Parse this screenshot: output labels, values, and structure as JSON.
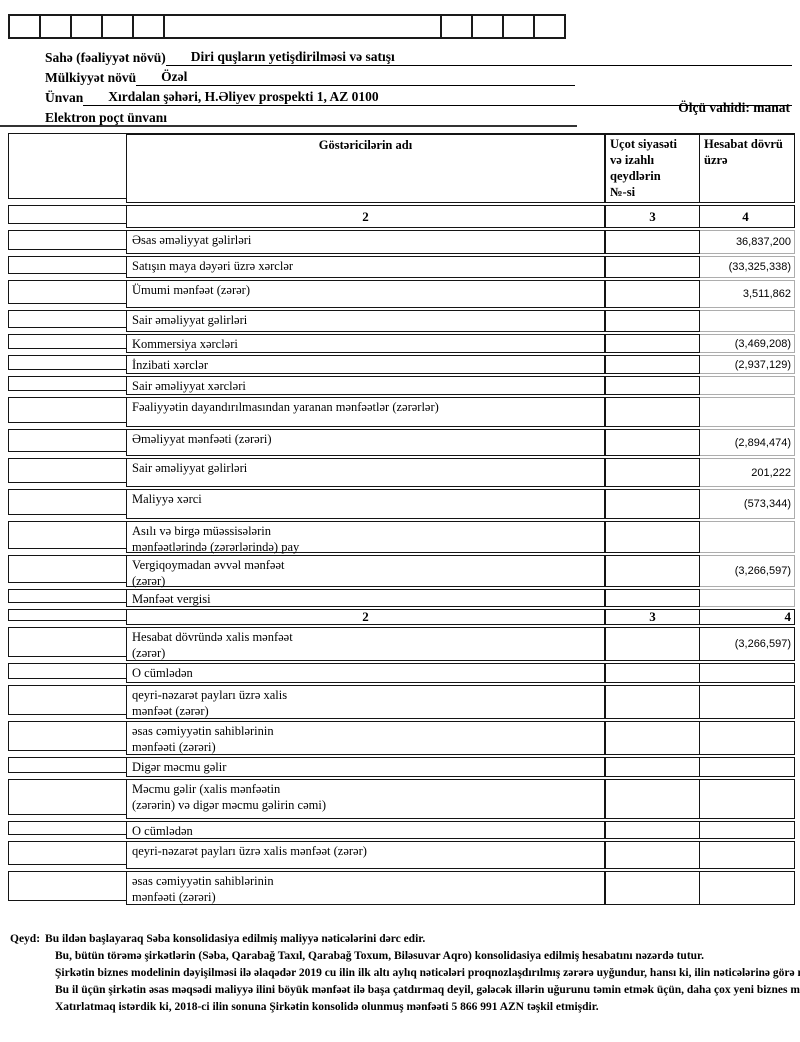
{
  "form": {
    "fields": [
      {
        "label": "Sahə (fəaliyyət növü)",
        "value": "Diri quşların yetişdirilməsi və satışı"
      },
      {
        "label": "Mülkiyyət növü",
        "value": "Özəl"
      },
      {
        "label": "Ünvan",
        "value": "Xırdalan şəhəri, H.Əliyev prospekti 1, AZ 0100"
      },
      {
        "label": "Elektron poçt ünvanı",
        "value": ""
      }
    ],
    "unit_label": "Ölçü vahidi: manat"
  },
  "table": {
    "header": {
      "name": "Göstəricilərin adı",
      "notes": "Uçot siyasəti\nvə izahlı\nqeydlərin\n№-si",
      "period": "Hesabat dövrü\nüzrə"
    },
    "column_numbers": [
      "2",
      "3",
      "4"
    ],
    "rows_a": [
      {
        "label": "Əsas əməliyyat gəlirləri",
        "value": "36,837,200"
      },
      {
        "label": "Satışın maya dəyəri üzrə xərclər",
        "value": "(33,325,338)"
      },
      {
        "label": "Ümumi mənfəət (zərər)",
        "value": "3,511,862"
      },
      {
        "label": "Sair əməliyyat gəlirləri",
        "value": ""
      },
      {
        "label": "Kommersiya xərcləri",
        "value": "(3,469,208)"
      },
      {
        "label": "İnzibati xərclər",
        "value": "(2,937,129)"
      },
      {
        "label": "Sair əməliyyat xərcləri",
        "value": ""
      },
      {
        "label": "Fəaliyyətin dayandırılmasından yaranan mənfəətlər (zərərlər)",
        "value": ""
      },
      {
        "label": "Əməliyyat mənfəəti (zərəri)",
        "value": "(2,894,474)"
      },
      {
        "label": "Sair əməliyyat gəlirləri",
        "value": "201,222"
      },
      {
        "label": "Maliyyə xərci",
        "value": "(573,344)"
      },
      {
        "label": "Asılı və birgə müəssisələrin\nmənfəətlərində (zərərlərində) pay",
        "value": ""
      },
      {
        "label": "Vergiqoymadan əvvəl mənfəət\n(zərər)",
        "value": "(3,266,597)"
      },
      {
        "label": "Mənfəət vergisi",
        "value": ""
      }
    ],
    "rows_b": [
      {
        "label": "Hesabat dövründə xalis mənfəət\n(zərər)",
        "value": "(3,266,597)"
      },
      {
        "label": "O cümlədən",
        "value": ""
      },
      {
        "label": "qeyri-nəzarət payları üzrə xalis\nmənfəət (zərər)",
        "value": ""
      },
      {
        "label": "əsas cəmiyyətin sahiblərinin\nmənfəəti (zərəri)",
        "value": ""
      },
      {
        "label": "Digər məcmu gəlir",
        "value": ""
      },
      {
        "label": "Məcmu gəlir (xalis mənfəətin\n(zərərin) və digər məcmu gəlirin cəmi)",
        "value": ""
      },
      {
        "label": "O cümlədən",
        "value": ""
      },
      {
        "label": "qeyri-nəzarət payları üzrə xalis mənfəət (zərər)",
        "value": ""
      },
      {
        "label": "əsas cəmiyyətin sahiblərinin\nmənfəəti (zərəri)",
        "value": ""
      }
    ]
  },
  "notes": {
    "prefix": "Qeyd:",
    "lines": [
      "Bu ildən başlayaraq Səba konsolidasiya edilmiş maliyyə nəticələrini dərc edir.",
      "Bu, bütün törəmə şirkətlərin (Səba, Qarabağ Taxıl, Qarabağ Toxum, Biləsuvar Aqro) konsolidasiya edilmiş hesabatını nəzərdə tutur.",
      "Şirkətin biznes modelinin dəyişilməsi ilə əlaqədər 2019 cu ilin ilk altı aylıq nəticələri proqnozlaşdırılmış zərərə uyğundur, hansı ki, ilin nəticələrinə görə mənfəət planla",
      "Bu il üçün şirkətin əsas məqsədi maliyyə ilini böyük mənfəət ilə başa çatdırmaq deyil, gələcək illərin uğurunu təmin etmək üçün, daha çox yeni biznes modelini tamam",
      "Xatırlatmaq istərdik ki, 2018-ci ilin sonuna Şirkətin konsolidə olunmuş mənfəəti  5 866 991 AZN təşkil etmişdir."
    ]
  }
}
